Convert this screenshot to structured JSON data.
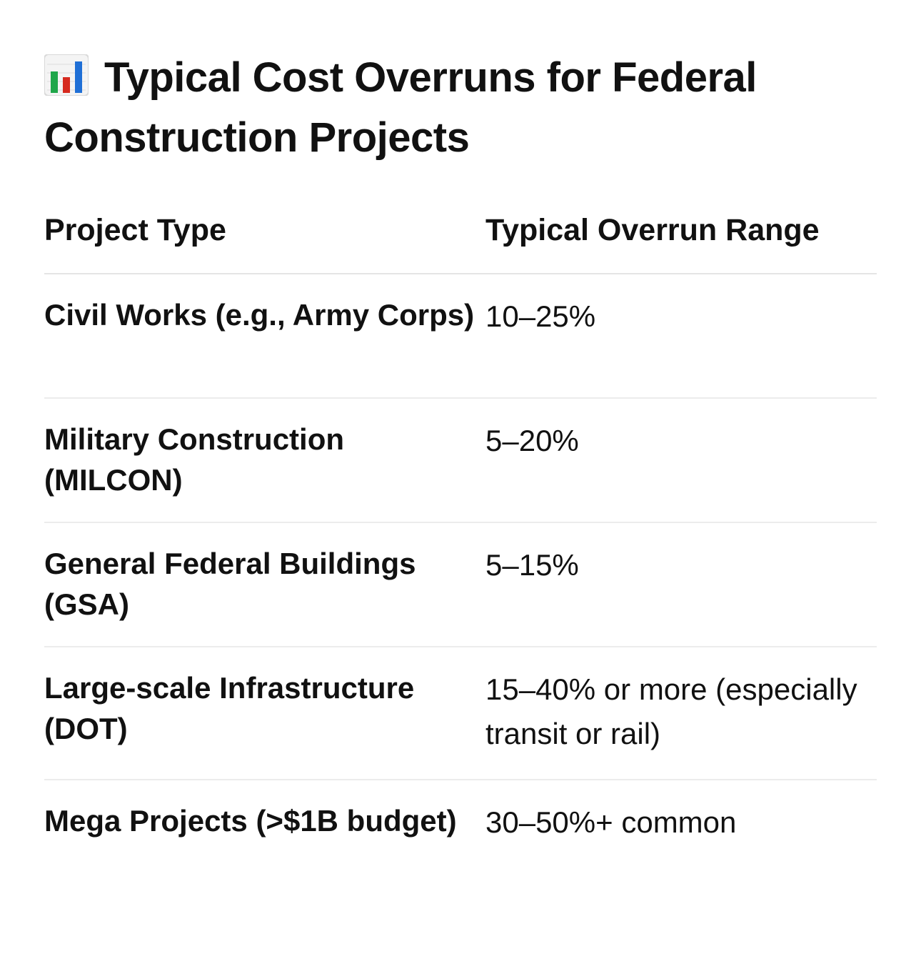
{
  "title": {
    "icon": "bar-chart-icon",
    "text": "Typical Cost Overruns for Federal Construction Projects"
  },
  "colors": {
    "text": "#111111",
    "divider": "#e5e5e5",
    "bar_blue": "#1f6fd6",
    "bar_red": "#d62a1f",
    "bar_green": "#1fa64a"
  },
  "table": {
    "headers": {
      "project_type": "Project Type",
      "overrun_range": "Typical Overrun Range"
    },
    "rows": [
      {
        "project_type": "Civil Works (e.g., Army Corps)",
        "overrun_range": "10–25%"
      },
      {
        "project_type": "Military Construction (MILCON)",
        "overrun_range": "5–20%"
      },
      {
        "project_type": "General Federal Buildings (GSA)",
        "overrun_range": "5–15%"
      },
      {
        "project_type": "Large-scale Infrastructure (DOT)",
        "overrun_range": "15–40% or more (especially transit or rail)"
      },
      {
        "project_type": "Mega Projects (>$1B budget)",
        "overrun_range": "30–50%+ common"
      }
    ]
  }
}
